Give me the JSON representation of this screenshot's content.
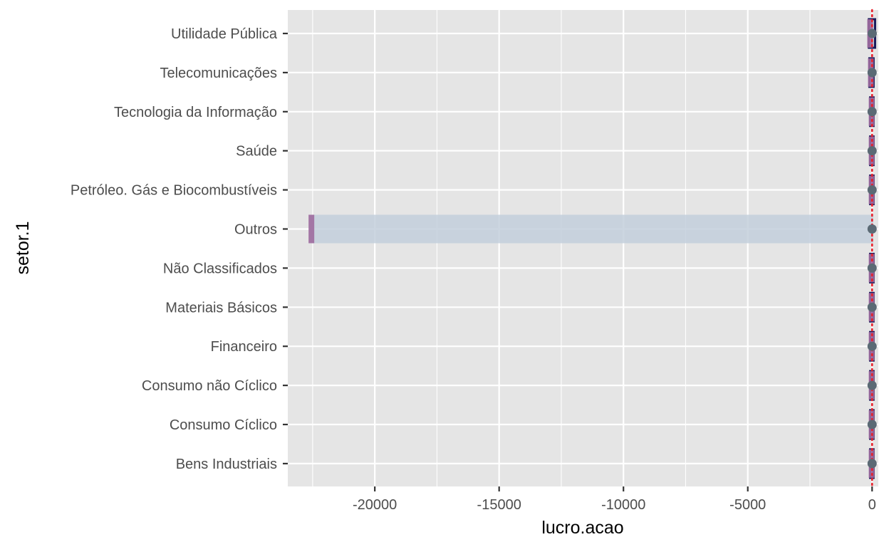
{
  "chart_data": {
    "type": "boxplot",
    "orientation": "horizontal",
    "xlabel": "lucro.acao",
    "ylabel": "setor.1",
    "xlim": [
      -23500,
      250
    ],
    "x_ticks": [
      -20000,
      -15000,
      -10000,
      -5000,
      0
    ],
    "x_tick_labels": [
      "-20000",
      "-15000",
      "-10000",
      "-5000",
      "0"
    ],
    "reference_line": {
      "x": 0,
      "style": "dotted",
      "color": "#e8202a"
    },
    "grid": true,
    "legend": "none",
    "colors": {
      "panel_background": "#e5e5e5",
      "grid": "#ffffff",
      "box_fill": "#c3cfdc",
      "box_outline": "#1a1a5a",
      "median": "#9e6b9e",
      "mean_point": "#5b6a75",
      "whisker_dots": "#e8202a",
      "tick_text": "#4d4d4d"
    },
    "categories": [
      "Utilidade Pública",
      "Telecomunicações",
      "Tecnologia da Informação",
      "Saúde",
      "Petróleo. Gás e Biocombustíveis",
      "Outros",
      "Não Classificados",
      "Materiais Básicos",
      "Financeiro",
      "Consumo não Cíclico",
      "Consumo Cíclico",
      "Bens Industriais"
    ],
    "boxes": [
      {
        "category": "Utilidade Pública",
        "q1": -130,
        "median": -80,
        "q3": 120,
        "mean": 5
      },
      {
        "category": "Telecomunicações",
        "q1": -110,
        "median": -50,
        "q3": 60,
        "mean": 0
      },
      {
        "category": "Tecnologia da Informação",
        "q1": -80,
        "median": -20,
        "q3": 60,
        "mean": 0
      },
      {
        "category": "Saúde",
        "q1": -80,
        "median": -20,
        "q3": 60,
        "mean": 0
      },
      {
        "category": "Petróleo. Gás e Biocombustíveis",
        "q1": -80,
        "median": -20,
        "q3": 60,
        "mean": 0
      },
      {
        "category": "Outros",
        "q1": -22650,
        "median": -22550,
        "q3": 50,
        "mean": 0
      },
      {
        "category": "Não Classificados",
        "q1": -80,
        "median": -20,
        "q3": 60,
        "mean": 0
      },
      {
        "category": "Materiais Básicos",
        "q1": -80,
        "median": -20,
        "q3": 60,
        "mean": 0
      },
      {
        "category": "Financeiro",
        "q1": -80,
        "median": -20,
        "q3": 60,
        "mean": 0
      },
      {
        "category": "Consumo não Cíclico",
        "q1": -80,
        "median": -20,
        "q3": 60,
        "mean": 0
      },
      {
        "category": "Consumo Cíclico",
        "q1": -80,
        "median": -20,
        "q3": 60,
        "mean": 0
      },
      {
        "category": "Bens Industriais",
        "q1": -80,
        "median": -20,
        "q3": 60,
        "mean": 0
      }
    ]
  }
}
